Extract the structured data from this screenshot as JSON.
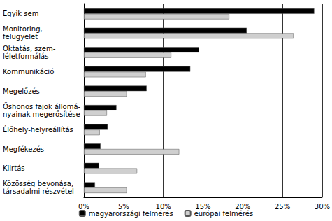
{
  "chart_data": {
    "type": "bar",
    "orientation": "horizontal",
    "categories": [
      "Egyik sem",
      "Monitoring,\nfelügyelet",
      "Oktatás, szem-\nléletformálás",
      "Kommunikáció",
      "Megelőzés",
      "Őshonos fajok állomá-\nnyainak megerősítése",
      "Élőhely-helyreállítás",
      "Megfékezés",
      "Kiirtás",
      "Közösség bevonása,\ntársadalmi részvétel"
    ],
    "series": [
      {
        "name": "magyarországi felmérés",
        "color": "#000000",
        "values": [
          29.0,
          20.5,
          14.5,
          13.4,
          7.9,
          4.1,
          3.0,
          2.1,
          1.9,
          1.4
        ]
      },
      {
        "name": "európai felmérés",
        "color": "#cfcfcf",
        "values": [
          18.3,
          26.4,
          11.0,
          7.8,
          5.4,
          2.9,
          2.0,
          12.0,
          6.7,
          5.4
        ]
      }
    ],
    "xlim": [
      0,
      30
    ],
    "xticks": [
      {
        "value": 0,
        "label": "0%"
      },
      {
        "value": 5,
        "label": "5%"
      },
      {
        "value": 10,
        "label": "10%"
      },
      {
        "value": 15,
        "label": "15%"
      },
      {
        "value": 20,
        "label": "20%"
      },
      {
        "value": 25,
        "label": "25%"
      },
      {
        "value": 30,
        "label": "30%"
      }
    ],
    "grid": true,
    "legend": "bottom"
  }
}
